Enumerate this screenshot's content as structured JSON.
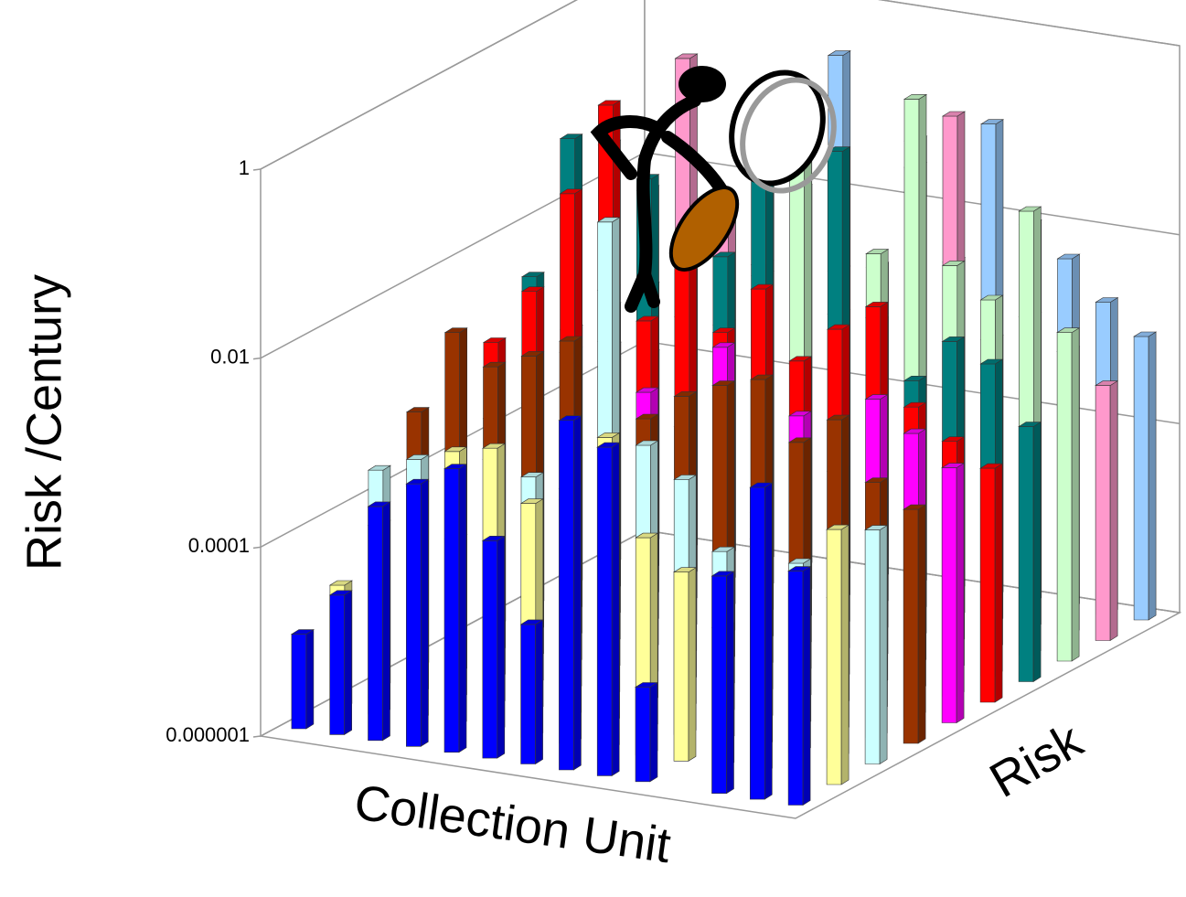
{
  "chart_data": {
    "type": "bar3d",
    "y_label": "Risk /Century",
    "x_label": "Collection Unit",
    "z_label": "Risk",
    "ylog": true,
    "ylim": [
      1e-06,
      1
    ],
    "yticks": [
      1e-06,
      0.0001,
      0.01,
      1
    ],
    "grid": true,
    "categories": [
      null,
      null,
      null,
      null,
      null,
      null,
      null,
      null,
      null,
      null,
      null,
      null,
      null,
      null
    ],
    "series": [
      {
        "color": "#0000ff",
        "values": [
          1e-05,
          3e-05,
          0.0003,
          0.0006,
          0.001,
          0.0002,
          3e-05,
          0.005,
          0.003,
          1e-05,
          null,
          0.0002,
          0.002,
          0.0003
        ]
      },
      {
        "color": "#ffff99",
        "values": [
          2e-05,
          0.0001,
          0.0003,
          0.0008,
          0.001,
          0.0003,
          0.0005,
          0.002,
          0.0002,
          0.0001,
          3e-05,
          0.0003,
          null,
          0.0005
        ]
      },
      {
        "color": "#ccffff",
        "values": [
          0.0002,
          0.0003,
          5e-05,
          0.0004,
          0.0003,
          0.0002,
          0.2,
          0.001,
          0.0005,
          0.0001,
          0.0003,
          0.0001,
          5e-05,
          0.0003
        ]
      },
      {
        "color": "#993300",
        "values": [
          0.0005,
          0.004,
          0.002,
          0.003,
          0.005,
          0.02,
          0.001,
          0.002,
          0.003,
          0.004,
          0.001,
          0.002,
          0.0005,
          0.0003
        ]
      },
      {
        "color": "#ff00ff",
        "values": [
          null,
          0.0003,
          0.0005,
          0.002,
          0.003,
          0.001,
          0.0005,
          0.004,
          0.002,
          0.001,
          0.0003,
          0.002,
          0.001,
          0.0005
        ]
      },
      {
        "color": "#ff0000",
        "values": [
          0.001,
          0.004,
          0.05,
          0.5,
          0.003,
          0.02,
          0.003,
          0.01,
          0.002,
          0.005,
          0.01,
          0.001,
          0.0005,
          0.0003
        ]
      },
      {
        "color": "#008080",
        "values": [
          0.003,
          0.1,
          0.1,
          0.05,
          0.002,
          0.01,
          0.3,
          0.001,
          0.2,
          0.004,
          0.001,
          0.003,
          0.002,
          0.0005
        ]
      },
      {
        "color": "#ccffcc",
        "values": [
          0.0005,
          0.001,
          0.02,
          0.003,
          0.001,
          0.005,
          0.2,
          0.002,
          0.01,
          0.5,
          0.01,
          0.005,
          0.05,
          0.003
        ]
      },
      {
        "color": "#ff99cc",
        "values": [
          0.0002,
          0.001,
          0.3,
          0.01,
          0.002,
          0.1,
          0.003,
          0.001,
          0.05,
          0.2,
          0.001,
          0.002,
          0.001,
          0.0005
        ]
      },
      {
        "color": "#99ccff",
        "values": [
          0.0001,
          0.002,
          0.005,
          0.1,
          0.01,
          0.3,
          0.002,
          0.05,
          0.003,
          0.1,
          0.01,
          0.005,
          0.002,
          0.001
        ]
      }
    ]
  }
}
